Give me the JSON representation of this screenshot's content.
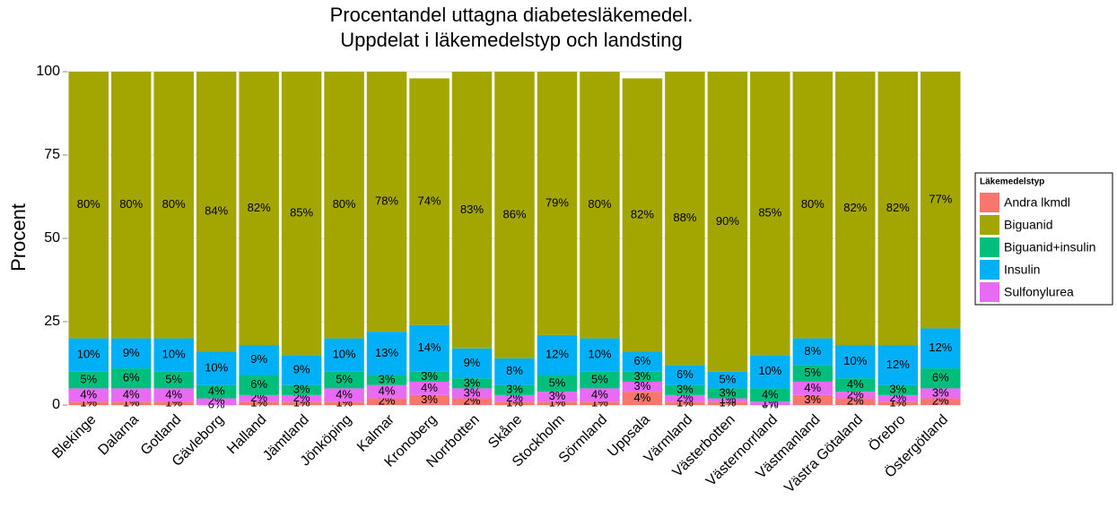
{
  "chart_data": {
    "type": "stacked_bar",
    "title": "Procentandel uttagna diabetesläkemedel.",
    "subtitle": "Uppdelat i läkemedelstyp och landsting",
    "y_label": "Procent",
    "legend_title": "Läkemedelstyp",
    "legend": "right",
    "grid": true,
    "categories": [
      "Blekinge",
      "Dalarna",
      "Gotland",
      "Gävleborg",
      "Halland",
      "Jämtland",
      "Jönköping",
      "Kalmar",
      "Kronoberg",
      "Norrbotten",
      "Skåne",
      "Stockholm",
      "Sörmland",
      "Uppsala",
      "Värmland",
      "Västerbotten",
      "Västernorrland",
      "Västmanland",
      "Västra Götaland",
      "Örebro",
      "Östergötland"
    ],
    "ylim": [
      0,
      100
    ],
    "yticks": [
      0,
      25,
      50,
      75,
      100
    ],
    "series": [
      {
        "name": "Andra lkmdl",
        "color": "#F8766D",
        "values": [
          1,
          1,
          1,
          0,
          1,
          1,
          1,
          2,
          3,
          2,
          1,
          1,
          1,
          4,
          1,
          1,
          0,
          3,
          2,
          1,
          2
        ],
        "value_labels": [
          "1%",
          "1%",
          "1%",
          "0%",
          "1%",
          "1%",
          "1%",
          "2%",
          "3%",
          "2%",
          "1%",
          "1%",
          "1%",
          "4%",
          "1%",
          "1%",
          "0%",
          "3%",
          "2%",
          "1%",
          "2%"
        ]
      },
      {
        "name": "Biguanid",
        "color": "#A3A500",
        "values": [
          80,
          80,
          80,
          84,
          82,
          85,
          80,
          78,
          74,
          83,
          86,
          79,
          80,
          82,
          88,
          90,
          85,
          80,
          82,
          82,
          77
        ],
        "value_labels": [
          "80%",
          "80%",
          "80%",
          "84%",
          "82%",
          "85%",
          "80%",
          "78%",
          "74%",
          "83%",
          "86%",
          "79%",
          "80%",
          "82%",
          "88%",
          "90%",
          "85%",
          "80%",
          "82%",
          "82%",
          "77%"
        ]
      },
      {
        "name": "Biguanid+insulin",
        "color": "#00BF7D",
        "values": [
          5,
          6,
          5,
          4,
          6,
          3,
          5,
          3,
          3,
          3,
          3,
          5,
          5,
          3,
          3,
          3,
          4,
          5,
          4,
          3,
          6
        ],
        "value_labels": [
          "5%",
          "6%",
          "5%",
          "4%",
          "6%",
          "3%",
          "5%",
          "3%",
          "3%",
          "3%",
          "3%",
          "5%",
          "5%",
          "3%",
          "3%",
          "3%",
          "4%",
          "5%",
          "4%",
          "3%",
          "6%"
        ]
      },
      {
        "name": "Insulin",
        "color": "#00B0F6",
        "values": [
          10,
          9,
          10,
          10,
          9,
          9,
          10,
          13,
          14,
          9,
          8,
          12,
          10,
          6,
          6,
          5,
          10,
          8,
          10,
          12,
          12
        ],
        "value_labels": [
          "10%",
          "9%",
          "10%",
          "10%",
          "9%",
          "9%",
          "10%",
          "13%",
          "14%",
          "9%",
          "8%",
          "12%",
          "10%",
          "6%",
          "6%",
          "5%",
          "10%",
          "8%",
          "10%",
          "12%",
          "12%"
        ]
      },
      {
        "name": "Sulfonylurea",
        "color": "#E76BF3",
        "values": [
          4,
          4,
          4,
          2,
          2,
          2,
          4,
          4,
          4,
          3,
          2,
          3,
          4,
          3,
          2,
          1,
          1,
          4,
          2,
          2,
          3
        ],
        "value_labels": [
          "4%",
          "4%",
          "4%",
          "2%",
          "2%",
          "2%",
          "4%",
          "4%",
          "4%",
          "3%",
          "2%",
          "3%",
          "4%",
          "3%",
          "2%",
          "1%",
          "1%",
          "4%",
          "2%",
          "2%",
          "3%"
        ]
      }
    ]
  }
}
